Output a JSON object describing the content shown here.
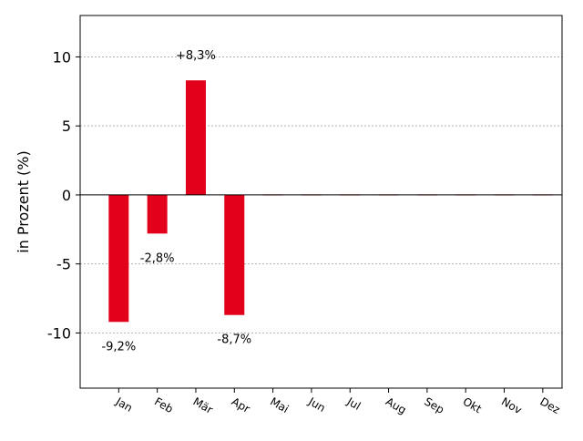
{
  "chart_data": {
    "type": "bar",
    "categories": [
      "Jan",
      "Feb",
      "Mär",
      "Apr",
      "Mai",
      "Jun",
      "Jul",
      "Aug",
      "Sep",
      "Okt",
      "Nov",
      "Dez"
    ],
    "values": [
      -9.2,
      -2.8,
      8.3,
      -8.7,
      0,
      0,
      0,
      0,
      0,
      0,
      0,
      0
    ],
    "data_labels": [
      "-9,2%",
      "-2,8%",
      "+8,3%",
      "-8,7%",
      "",
      "",
      "",
      "",
      "",
      "",
      "",
      ""
    ],
    "title": "",
    "xlabel": "",
    "ylabel": "in Prozent (%)",
    "ylim": [
      -14,
      13
    ],
    "yticks": [
      10,
      5,
      0,
      -5,
      -10
    ],
    "ytick_labels": [
      "10",
      "5",
      "0",
      "-5",
      "-10"
    ],
    "grid": true,
    "bar_color": "#e2001a",
    "grid_color": "#b0b0b0",
    "zero_line_color": "#000000"
  }
}
